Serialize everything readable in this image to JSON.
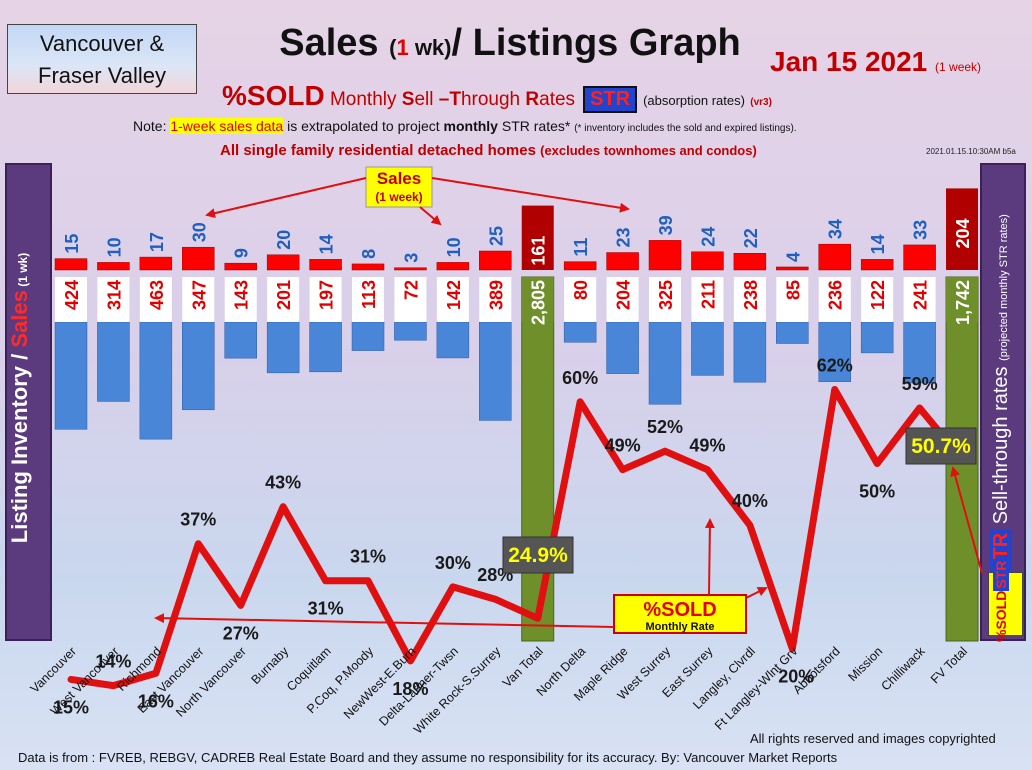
{
  "header": {
    "region_line1": "Vancouver &",
    "region_line2": "Fraser Valley",
    "title_a": "Sales ",
    "title_paren_open": "(",
    "title_one": "1",
    "title_wk": " wk)",
    "title_b": "/ Listings Graph",
    "date": "Jan 15  2021",
    "date_note": "(1 week)",
    "sub_sold": "%SOLD",
    "sub_monthly": " Monthly ",
    "sub_s": "S",
    "sub_ell": "ell ",
    "sub_dash": "–",
    "sub_t": "T",
    "sub_hrough": "hrough ",
    "sub_r": "R",
    "sub_ates": "ates",
    "sub_str": "STR",
    "sub_abs": "(absorption rates)",
    "sub_ver": "(vr3)",
    "note_a": "Note: ",
    "note_hl": "1-week sales data",
    "note_b": " is extrapolated to project ",
    "note_bold": "monthly",
    "note_c": " STR rates* ",
    "note_small": "(* inventory includes the sold and expired listings).",
    "detached": "All single family residential detached homes ",
    "detached_small": "(excludes townhomes and condos)",
    "stamp": "2021.01.15.10:30AM b5a"
  },
  "side": {
    "left_a": "Listing Inventory / ",
    "left_b": "Sales",
    "left_c": " (1 wk)",
    "right_str": "STR",
    "right_a": " Sell-through rates ",
    "right_b": "(projected monthly STR rates)",
    "tag_sold": "%SOLD",
    "tag_str": "STR"
  },
  "callouts": {
    "sales": "Sales",
    "sales_sub": "(1 week)",
    "sold": "%SOLD",
    "sold_sub": "Monthly Rate"
  },
  "footer": {
    "copyright": "All rights reserved and  images copyrighted",
    "source": "Data is from : FVREB, REBGV, CADREB Real Estate Board and they assume no responsibility for its accuracy. By: Vancouver Market Reports"
  },
  "colors": {
    "sales_bar": "#ff0000",
    "listing_bar": "#4a86d8",
    "total_bar": "#6f8f2a",
    "total_sales_bar": "#b00000",
    "line": "#e01010",
    "sales_label": "#1f5fbf",
    "listing_label": "#e00000"
  },
  "chart_data": {
    "type": "bar",
    "categories": [
      "Vancouver",
      "West Vancouver",
      "Richmond",
      "East Vancouver",
      "North Vancouver",
      "Burnaby",
      "Coquitlam",
      "P.Coq, P.Moody",
      "NewWest-E.Burn",
      "Delta-Ladner-Twsn",
      "White Rock-S.Surrey",
      "Van Total",
      "North Delta",
      "Maple Ridge",
      "West Surrey",
      "East Surrey",
      "Langley, Clvrdl",
      "Ft Langley-Wlnt Grv",
      "Abbotsford",
      "Mission",
      "Chilliwack",
      "FV Total"
    ],
    "series": [
      {
        "name": "Sales",
        "values": [
          15,
          10,
          17,
          30,
          9,
          20,
          14,
          8,
          3,
          10,
          25,
          161,
          11,
          23,
          39,
          24,
          22,
          4,
          34,
          14,
          33,
          204
        ]
      },
      {
        "name": "Listing Inventory",
        "values": [
          424,
          314,
          463,
          347,
          143,
          201,
          197,
          113,
          72,
          142,
          389,
          2805,
          80,
          204,
          325,
          211,
          238,
          85,
          236,
          122,
          241,
          1742
        ]
      },
      {
        "name": "%SOLD",
        "values": [
          15,
          14,
          16,
          37,
          27,
          43,
          31,
          31,
          18,
          30,
          28,
          24.9,
          60,
          49,
          52,
          49,
          40,
          20,
          62,
          50,
          59,
          50.7
        ]
      }
    ],
    "sales_labels": [
      "15",
      "10",
      "17",
      "30",
      "9",
      "20",
      "14",
      "8",
      "3",
      "10",
      "25",
      "161",
      "11",
      "23",
      "39",
      "24",
      "22",
      "4",
      "34",
      "14",
      "33",
      "204"
    ],
    "listing_labels": [
      "424",
      "314",
      "463",
      "347",
      "143",
      "201",
      "197",
      "113",
      "72",
      "142",
      "389",
      "2,805",
      "80",
      "204",
      "325",
      "211",
      "238",
      "85",
      "236",
      "122",
      "241",
      "1,742"
    ],
    "pct_labels": [
      "15%",
      "14%",
      "16%",
      "37%",
      "27%",
      "43%",
      "31%",
      "31%",
      "18%",
      "30%",
      "28%",
      "24.9%",
      "60%",
      "49%",
      "52%",
      "49%",
      "40%",
      "20%",
      "62%",
      "50%",
      "59%",
      "50.7%"
    ],
    "total_indices": [
      11,
      21
    ],
    "xlabel": "",
    "ylabel": "Listing Inventory / Sales (1 wk)",
    "y2label": "STR Sell-through rates (projected monthly STR rates)",
    "grid": false
  }
}
